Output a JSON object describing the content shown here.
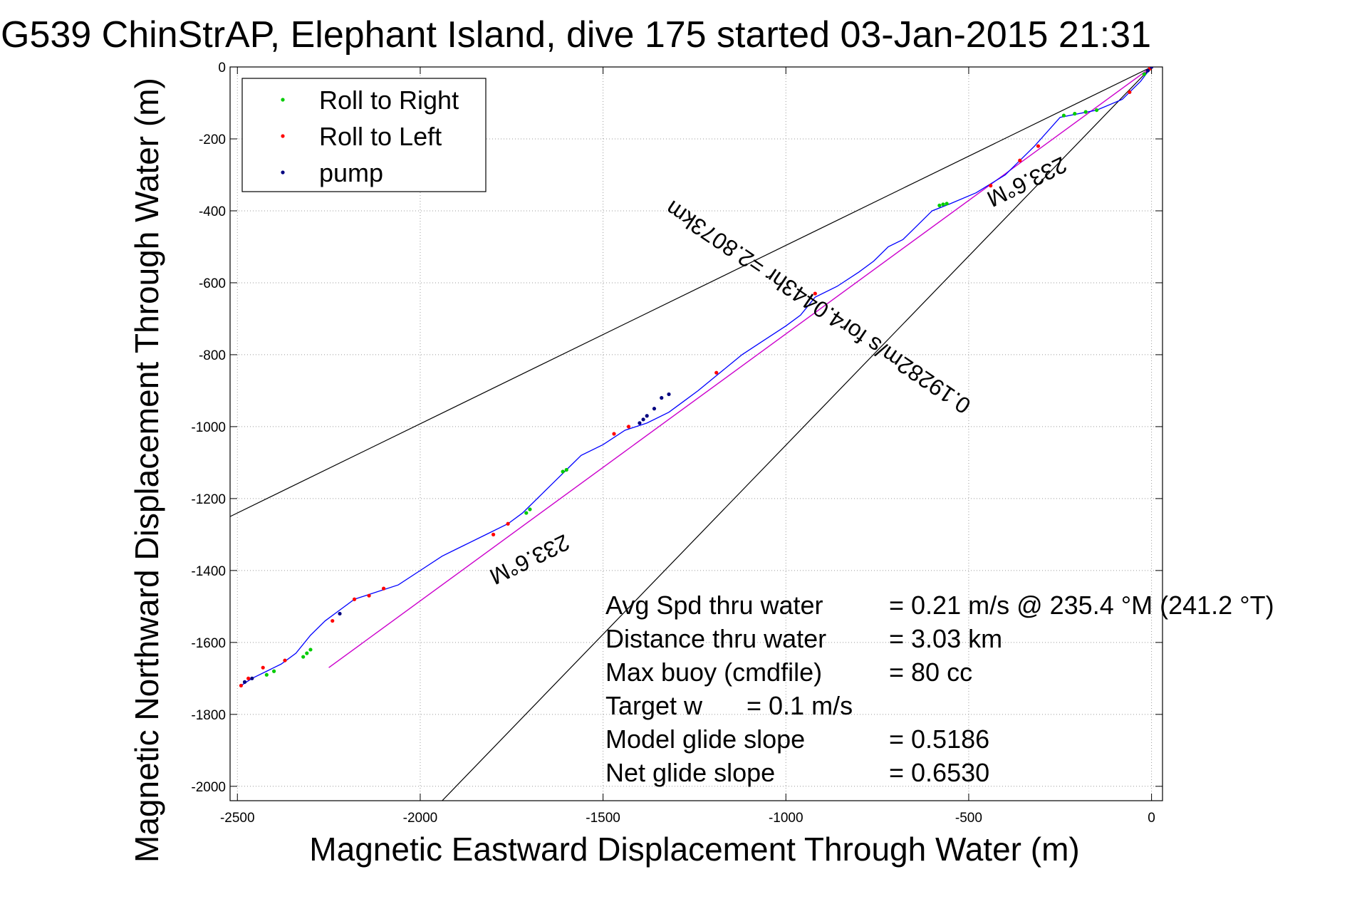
{
  "chart_data": {
    "type": "scatter",
    "title": "G539 ChinStrAP, Elephant Island, dive 175 started 03-Jan-2015 21:31",
    "xlabel": "Magnetic Eastward Displacement Through Water (m)",
    "ylabel": "Magnetic Northward Displacement Through Water (m)",
    "xlim": [
      -2520,
      30
    ],
    "ylim": [
      -2040,
      0
    ],
    "xticks": [
      -2500,
      -2000,
      -1500,
      -1000,
      -500,
      0
    ],
    "yticks": [
      0,
      -200,
      -400,
      -600,
      -800,
      -1000,
      -1200,
      -1400,
      -1600,
      -1800,
      -2000
    ],
    "grid": true,
    "legend_position": "top-left",
    "colors": {
      "track": "#0000ff",
      "roll_right": "#00cc00",
      "roll_left": "#ff0000",
      "pump": "#000080",
      "heading_line": "#cc00cc",
      "bound_lines": "#000000"
    },
    "legend": [
      {
        "label": "Roll to Right",
        "color": "#00cc00"
      },
      {
        "label": "Roll to Left",
        "color": "#ff0000"
      },
      {
        "label": "pump",
        "color": "#000080"
      }
    ],
    "track": {
      "x": [
        0,
        -30,
        -80,
        -150,
        -250,
        -320,
        -400,
        -480,
        -550,
        -600,
        -640,
        -680,
        -720,
        -760,
        -800,
        -860,
        -920,
        -960,
        -1000,
        -1060,
        -1120,
        -1180,
        -1240,
        -1280,
        -1320,
        -1380,
        -1440,
        -1500,
        -1560,
        -1600,
        -1640,
        -1680,
        -1720,
        -1760,
        -1820,
        -1880,
        -1940,
        -2000,
        -2060,
        -2120,
        -2180,
        -2220,
        -2260,
        -2300,
        -2340,
        -2380,
        -2420,
        -2460,
        -2490
      ],
      "y": [
        0,
        -40,
        -90,
        -120,
        -140,
        -220,
        -300,
        -350,
        -380,
        -400,
        -440,
        -480,
        -500,
        -540,
        -570,
        -610,
        -640,
        -690,
        -720,
        -760,
        -800,
        -850,
        -900,
        -930,
        -960,
        -990,
        -1010,
        -1050,
        -1080,
        -1120,
        -1160,
        -1200,
        -1240,
        -1270,
        -1300,
        -1330,
        -1360,
        -1400,
        -1440,
        -1460,
        -1480,
        -1510,
        -1540,
        -1580,
        -1630,
        -1660,
        -1680,
        -1700,
        -1720
      ]
    },
    "roll_right": {
      "x": [
        -5,
        -20,
        -150,
        -180,
        -210,
        -240,
        -560,
        -570,
        -580,
        -1600,
        -1610,
        -1700,
        -1710,
        -2300,
        -2310,
        -2320,
        -2400,
        -2420
      ],
      "y": [
        -5,
        -20,
        -120,
        -125,
        -130,
        -135,
        -380,
        -382,
        -385,
        -1120,
        -1125,
        -1230,
        -1240,
        -1620,
        -1630,
        -1640,
        -1680,
        -1690
      ]
    },
    "roll_left": {
      "x": [
        -5,
        -60,
        -310,
        -360,
        -440,
        -920,
        -1190,
        -1430,
        -1470,
        -1760,
        -1800,
        -2100,
        -2140,
        -2180,
        -2240,
        -2370,
        -2430,
        -2470,
        -2490
      ],
      "y": [
        -5,
        -70,
        -220,
        -260,
        -330,
        -630,
        -850,
        -1000,
        -1020,
        -1270,
        -1300,
        -1450,
        -1470,
        -1480,
        -1540,
        -1650,
        -1670,
        -1700,
        -1720
      ]
    },
    "pump": {
      "x": [
        0,
        -10,
        -1320,
        -1340,
        -1360,
        -1380,
        -1390,
        -1400,
        -2220,
        -2460,
        -2480
      ],
      "y": [
        0,
        -10,
        -910,
        -920,
        -950,
        -970,
        -980,
        -990,
        -1520,
        -1700,
        -1710
      ]
    },
    "heading_line": {
      "x": [
        0,
        -2250
      ],
      "y": [
        0,
        -1670
      ]
    },
    "bound_lines": [
      {
        "x": [
          0,
          -2520
        ],
        "y": [
          0,
          -1250
        ]
      },
      {
        "x": [
          0,
          -1940
        ],
        "y": [
          0,
          -2040
        ]
      }
    ],
    "annotations": [
      {
        "text": "233.6°M",
        "x": -350,
        "y": -300,
        "rotate": 154
      },
      {
        "text": "0.19282m/s for4.0443hr =2.8073km",
        "x": -900,
        "y": -650,
        "rotate": 214
      },
      {
        "text": "233.6°M",
        "x": -1710,
        "y": -1350,
        "rotate": 154
      }
    ],
    "stats": [
      {
        "label": "Avg Spd thru water",
        "value": "=  0.21 m/s @ 235.4 °M (241.2 °T)"
      },
      {
        "label": "Distance thru water",
        "value": "=  3.03 km"
      },
      {
        "label": "Max buoy (cmdfile)",
        "value": "= 80 cc"
      },
      {
        "label": "Target w",
        "value": "= 0.1 m/s"
      },
      {
        "label": "Model glide slope",
        "value": "= 0.5186"
      },
      {
        "label": "Net glide slope",
        "value": "= 0.6530"
      }
    ]
  }
}
